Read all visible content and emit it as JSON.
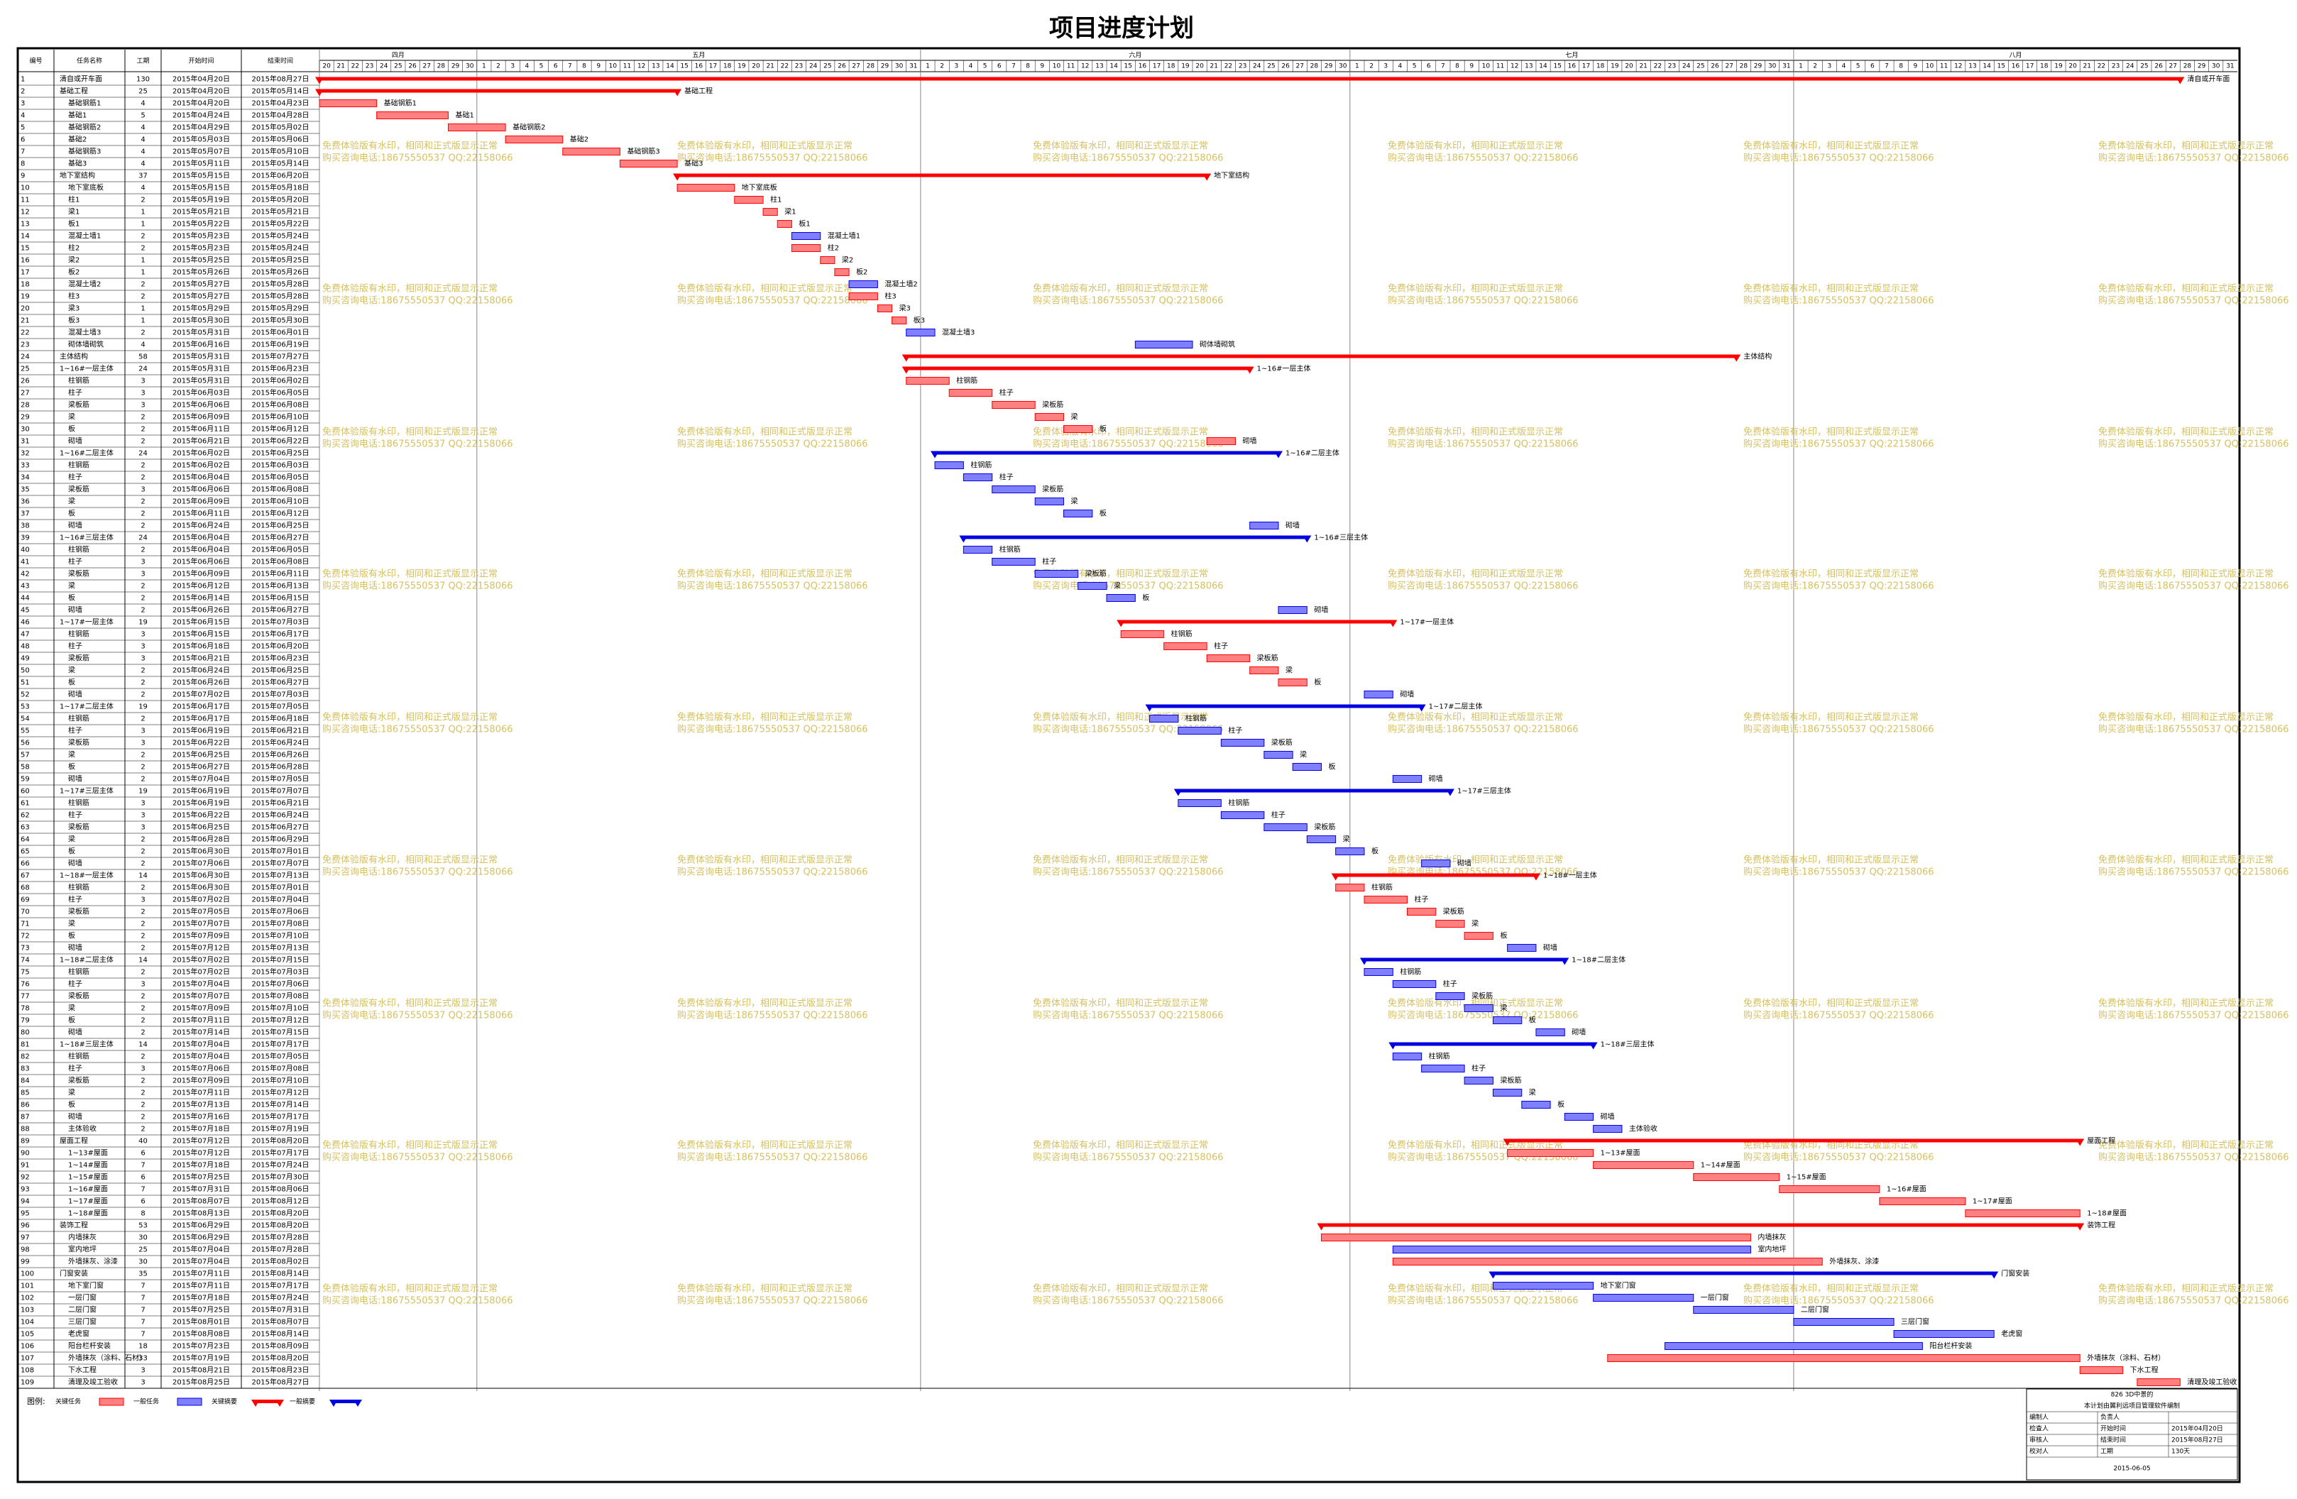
{
  "title": "项目进度计划",
  "columns": [
    "编号",
    "任务名称",
    "工期",
    "开始时间",
    "结束时间"
  ],
  "tasks": [
    [
      1,
      "清自或开车面",
      130,
      "2015年04月20日",
      "2015年08月27日",
      "cs"
    ],
    [
      2,
      "基础工程",
      25,
      "2015年04月20日",
      "2015年05月14日",
      "cs"
    ],
    [
      3,
      "基础钢筋1",
      4,
      "2015年04月20日",
      "2015年04月23日",
      "c"
    ],
    [
      4,
      "基础1",
      5,
      "2015年04月24日",
      "2015年04月28日",
      "c"
    ],
    [
      5,
      "基础钢筋2",
      4,
      "2015年04月29日",
      "2015年05月02日",
      "c"
    ],
    [
      6,
      "基础2",
      4,
      "2015年05月03日",
      "2015年05月06日",
      "c"
    ],
    [
      7,
      "基础钢筋3",
      4,
      "2015年05月07日",
      "2015年05月10日",
      "c"
    ],
    [
      8,
      "基础3",
      4,
      "2015年05月11日",
      "2015年05月14日",
      "c"
    ],
    [
      9,
      "地下室结构",
      37,
      "2015年05月15日",
      "2015年06月20日",
      "cs"
    ],
    [
      10,
      "地下室底板",
      4,
      "2015年05月15日",
      "2015年05月18日",
      "c"
    ],
    [
      11,
      "柱1",
      2,
      "2015年05月19日",
      "2015年05月20日",
      "c"
    ],
    [
      12,
      "梁1",
      1,
      "2015年05月21日",
      "2015年05月21日",
      "c"
    ],
    [
      13,
      "板1",
      1,
      "2015年05月22日",
      "2015年05月22日",
      "c"
    ],
    [
      14,
      "混凝土墙1",
      2,
      "2015年05月23日",
      "2015年05月24日",
      "n"
    ],
    [
      15,
      "柱2",
      2,
      "2015年05月23日",
      "2015年05月24日",
      "c"
    ],
    [
      16,
      "梁2",
      1,
      "2015年05月25日",
      "2015年05月25日",
      "c"
    ],
    [
      17,
      "板2",
      1,
      "2015年05月26日",
      "2015年05月26日",
      "c"
    ],
    [
      18,
      "混凝土墙2",
      2,
      "2015年05月27日",
      "2015年05月28日",
      "n"
    ],
    [
      19,
      "柱3",
      2,
      "2015年05月27日",
      "2015年05月28日",
      "c"
    ],
    [
      20,
      "梁3",
      1,
      "2015年05月29日",
      "2015年05月29日",
      "c"
    ],
    [
      21,
      "板3",
      1,
      "2015年05月30日",
      "2015年05月30日",
      "c"
    ],
    [
      22,
      "混凝土墙3",
      2,
      "2015年05月31日",
      "2015年06月01日",
      "n"
    ],
    [
      23,
      "砌体墙砌筑",
      4,
      "2015年06月16日",
      "2015年06月19日",
      "n"
    ],
    [
      24,
      "主体结构",
      58,
      "2015年05月31日",
      "2015年07月27日",
      "cs"
    ],
    [
      25,
      "1~16#一层主体",
      24,
      "2015年05月31日",
      "2015年06月23日",
      "cs"
    ],
    [
      26,
      "柱钢筋",
      3,
      "2015年05月31日",
      "2015年06月02日",
      "c"
    ],
    [
      27,
      "柱子",
      3,
      "2015年06月03日",
      "2015年06月05日",
      "c"
    ],
    [
      28,
      "梁板筋",
      3,
      "2015年06月06日",
      "2015年06月08日",
      "c"
    ],
    [
      29,
      "梁",
      2,
      "2015年06月09日",
      "2015年06月10日",
      "c"
    ],
    [
      30,
      "板",
      2,
      "2015年06月11日",
      "2015年06月12日",
      "c"
    ],
    [
      31,
      "砌墙",
      2,
      "2015年06月21日",
      "2015年06月22日",
      "c"
    ],
    [
      32,
      "1~16#二层主体",
      24,
      "2015年06月02日",
      "2015年06月25日",
      "ns"
    ],
    [
      33,
      "柱钢筋",
      2,
      "2015年06月02日",
      "2015年06月03日",
      "n"
    ],
    [
      34,
      "柱子",
      2,
      "2015年06月04日",
      "2015年06月05日",
      "n"
    ],
    [
      35,
      "梁板筋",
      3,
      "2015年06月06日",
      "2015年06月08日",
      "n"
    ],
    [
      36,
      "梁",
      2,
      "2015年06月09日",
      "2015年06月10日",
      "n"
    ],
    [
      37,
      "板",
      2,
      "2015年06月11日",
      "2015年06月12日",
      "n"
    ],
    [
      38,
      "砌墙",
      2,
      "2015年06月24日",
      "2015年06月25日",
      "n"
    ],
    [
      39,
      "1~16#三层主体",
      24,
      "2015年06月04日",
      "2015年06月27日",
      "ns"
    ],
    [
      40,
      "柱钢筋",
      2,
      "2015年06月04日",
      "2015年06月05日",
      "n"
    ],
    [
      41,
      "柱子",
      3,
      "2015年06月06日",
      "2015年06月08日",
      "n"
    ],
    [
      42,
      "梁板筋",
      3,
      "2015年06月09日",
      "2015年06月11日",
      "n"
    ],
    [
      43,
      "梁",
      2,
      "2015年06月12日",
      "2015年06月13日",
      "n"
    ],
    [
      44,
      "板",
      2,
      "2015年06月14日",
      "2015年06月15日",
      "n"
    ],
    [
      45,
      "砌墙",
      2,
      "2015年06月26日",
      "2015年06月27日",
      "n"
    ],
    [
      46,
      "1~17#一层主体",
      19,
      "2015年06月15日",
      "2015年07月03日",
      "cs"
    ],
    [
      47,
      "柱钢筋",
      3,
      "2015年06月15日",
      "2015年06月17日",
      "c"
    ],
    [
      48,
      "柱子",
      3,
      "2015年06月18日",
      "2015年06月20日",
      "c"
    ],
    [
      49,
      "梁板筋",
      3,
      "2015年06月21日",
      "2015年06月23日",
      "c"
    ],
    [
      50,
      "梁",
      2,
      "2015年06月24日",
      "2015年06月25日",
      "c"
    ],
    [
      51,
      "板",
      2,
      "2015年06月26日",
      "2015年06月27日",
      "c"
    ],
    [
      52,
      "砌墙",
      2,
      "2015年07月02日",
      "2015年07月03日",
      "n"
    ],
    [
      53,
      "1~17#二层主体",
      19,
      "2015年06月17日",
      "2015年07月05日",
      "ns"
    ],
    [
      54,
      "柱钢筋",
      2,
      "2015年06月17日",
      "2015年06月18日",
      "n"
    ],
    [
      55,
      "柱子",
      3,
      "2015年06月19日",
      "2015年06月21日",
      "n"
    ],
    [
      56,
      "梁板筋",
      3,
      "2015年06月22日",
      "2015年06月24日",
      "n"
    ],
    [
      57,
      "梁",
      2,
      "2015年06月25日",
      "2015年06月26日",
      "n"
    ],
    [
      58,
      "板",
      2,
      "2015年06月27日",
      "2015年06月28日",
      "n"
    ],
    [
      59,
      "砌墙",
      2,
      "2015年07月04日",
      "2015年07月05日",
      "n"
    ],
    [
      60,
      "1~17#三层主体",
      19,
      "2015年06月19日",
      "2015年07月07日",
      "ns"
    ],
    [
      61,
      "柱钢筋",
      3,
      "2015年06月19日",
      "2015年06月21日",
      "n"
    ],
    [
      62,
      "柱子",
      3,
      "2015年06月22日",
      "2015年06月24日",
      "n"
    ],
    [
      63,
      "梁板筋",
      3,
      "2015年06月25日",
      "2015年06月27日",
      "n"
    ],
    [
      64,
      "梁",
      2,
      "2015年06月28日",
      "2015年06月29日",
      "n"
    ],
    [
      65,
      "板",
      2,
      "2015年06月30日",
      "2015年07月01日",
      "n"
    ],
    [
      66,
      "砌墙",
      2,
      "2015年07月06日",
      "2015年07月07日",
      "n"
    ],
    [
      67,
      "1~18#一层主体",
      14,
      "2015年06月30日",
      "2015年07月13日",
      "cs"
    ],
    [
      68,
      "柱钢筋",
      2,
      "2015年06月30日",
      "2015年07月01日",
      "c"
    ],
    [
      69,
      "柱子",
      3,
      "2015年07月02日",
      "2015年07月04日",
      "c"
    ],
    [
      70,
      "梁板筋",
      2,
      "2015年07月05日",
      "2015年07月06日",
      "c"
    ],
    [
      71,
      "梁",
      2,
      "2015年07月07日",
      "2015年07月08日",
      "c"
    ],
    [
      72,
      "板",
      2,
      "2015年07月09日",
      "2015年07月10日",
      "c"
    ],
    [
      73,
      "砌墙",
      2,
      "2015年07月12日",
      "2015年07月13日",
      "n"
    ],
    [
      74,
      "1~18#二层主体",
      14,
      "2015年07月02日",
      "2015年07月15日",
      "ns"
    ],
    [
      75,
      "柱钢筋",
      2,
      "2015年07月02日",
      "2015年07月03日",
      "n"
    ],
    [
      76,
      "柱子",
      3,
      "2015年07月04日",
      "2015年07月06日",
      "n"
    ],
    [
      77,
      "梁板筋",
      2,
      "2015年07月07日",
      "2015年07月08日",
      "n"
    ],
    [
      78,
      "梁",
      2,
      "2015年07月09日",
      "2015年07月10日",
      "n"
    ],
    [
      79,
      "板",
      2,
      "2015年07月11日",
      "2015年07月12日",
      "n"
    ],
    [
      80,
      "砌墙",
      2,
      "2015年07月14日",
      "2015年07月15日",
      "n"
    ],
    [
      81,
      "1~18#三层主体",
      14,
      "2015年07月04日",
      "2015年07月17日",
      "ns"
    ],
    [
      82,
      "柱钢筋",
      2,
      "2015年07月04日",
      "2015年07月05日",
      "n"
    ],
    [
      83,
      "柱子",
      3,
      "2015年07月06日",
      "2015年07月08日",
      "n"
    ],
    [
      84,
      "梁板筋",
      2,
      "2015年07月09日",
      "2015年07月10日",
      "n"
    ],
    [
      85,
      "梁",
      2,
      "2015年07月11日",
      "2015年07月12日",
      "n"
    ],
    [
      86,
      "板",
      2,
      "2015年07月13日",
      "2015年07月14日",
      "n"
    ],
    [
      87,
      "砌墙",
      2,
      "2015年07月16日",
      "2015年07月17日",
      "n"
    ],
    [
      88,
      "主体验收",
      2,
      "2015年07月18日",
      "2015年07月19日",
      "n"
    ],
    [
      89,
      "屋面工程",
      40,
      "2015年07月12日",
      "2015年08月20日",
      "cs"
    ],
    [
      90,
      "1~13#屋面",
      6,
      "2015年07月12日",
      "2015年07月17日",
      "c"
    ],
    [
      91,
      "1~14#屋面",
      7,
      "2015年07月18日",
      "2015年07月24日",
      "c"
    ],
    [
      92,
      "1~15#屋面",
      6,
      "2015年07月25日",
      "2015年07月30日",
      "c"
    ],
    [
      93,
      "1~16#屋面",
      7,
      "2015年07月31日",
      "2015年08月06日",
      "c"
    ],
    [
      94,
      "1~17#屋面",
      6,
      "2015年08月07日",
      "2015年08月12日",
      "c"
    ],
    [
      95,
      "1~18#屋面",
      8,
      "2015年08月13日",
      "2015年08月20日",
      "c"
    ],
    [
      96,
      "装饰工程",
      53,
      "2015年06月29日",
      "2015年08月20日",
      "cs"
    ],
    [
      97,
      "内墙抹灰",
      30,
      "2015年06月29日",
      "2015年07月28日",
      "c"
    ],
    [
      98,
      "室内地坪",
      25,
      "2015年07月04日",
      "2015年07月28日",
      "n"
    ],
    [
      99,
      "外墙抹灰、涂漆",
      30,
      "2015年07月04日",
      "2015年08月02日",
      "c"
    ],
    [
      100,
      "门窗安装",
      35,
      "2015年07月11日",
      "2015年08月14日",
      "ns"
    ],
    [
      101,
      "地下室门窗",
      7,
      "2015年07月11日",
      "2015年07月17日",
      "n"
    ],
    [
      102,
      "一层门窗",
      7,
      "2015年07月18日",
      "2015年07月24日",
      "n"
    ],
    [
      103,
      "二层门窗",
      7,
      "2015年07月25日",
      "2015年07月31日",
      "n"
    ],
    [
      104,
      "三层门窗",
      7,
      "2015年08月01日",
      "2015年08月07日",
      "n"
    ],
    [
      105,
      "老虎窗",
      7,
      "2015年08月08日",
      "2015年08月14日",
      "n"
    ],
    [
      106,
      "阳台栏杆安装",
      18,
      "2015年07月23日",
      "2015年08月09日",
      "n"
    ],
    [
      107,
      "外墙抹灰（涂料、石材）",
      33,
      "2015年07月19日",
      "2015年08月20日",
      "c"
    ],
    [
      108,
      "下水工程",
      3,
      "2015年08月21日",
      "2015年08月23日",
      "c"
    ],
    [
      109,
      "清理及竣工验收",
      3,
      "2015年08月25日",
      "2015年08月27日",
      "c"
    ]
  ],
  "timeline": {
    "months": [
      {
        "name": "四月",
        "days": [
          20,
          21,
          22,
          23,
          24,
          25,
          26,
          27,
          28,
          29,
          30
        ]
      },
      {
        "name": "五月",
        "days": [
          1,
          2,
          3,
          4,
          5,
          6,
          7,
          8,
          9,
          10,
          11,
          12,
          13,
          14,
          15,
          16,
          17,
          18,
          19,
          20,
          21,
          22,
          23,
          24,
          25,
          26,
          27,
          28,
          29,
          30,
          31
        ]
      },
      {
        "name": "六月",
        "days": [
          1,
          2,
          3,
          4,
          5,
          6,
          7,
          8,
          9,
          10,
          11,
          12,
          13,
          14,
          15,
          16,
          17,
          18,
          19,
          20,
          21,
          22,
          23,
          24,
          25,
          26,
          27,
          28,
          29,
          30
        ]
      },
      {
        "name": "七月",
        "days": [
          1,
          2,
          3,
          4,
          5,
          6,
          7,
          8,
          9,
          10,
          11,
          12,
          13,
          14,
          15,
          16,
          17,
          18,
          19,
          20,
          21,
          22,
          23,
          24,
          25,
          26,
          27,
          28,
          29,
          30,
          31
        ]
      },
      {
        "name": "八月",
        "days": [
          1,
          2,
          3,
          4,
          5,
          6,
          7,
          8,
          9,
          10,
          11,
          12,
          13,
          14,
          15,
          16,
          17,
          18,
          19,
          20,
          21,
          22,
          23,
          24,
          25,
          26,
          27,
          28,
          29,
          30,
          31
        ]
      }
    ]
  },
  "legend": {
    "label": "图例:",
    "items": [
      "关键任务",
      "一般任务",
      "关键摘要",
      "一般摘要"
    ]
  },
  "watermark": [
    "免费体验版有水印，相同和正式版显示正常",
    "购买咨询电话:18675550537 QQ:22158066"
  ],
  "info": {
    "title": "826 3D中景的",
    "note": "本计划由翼利远项目管理软件编制",
    "rows": [
      [
        "编制人",
        "负责人"
      ],
      [
        "检查人",
        "开始时间",
        "2015年04月20日"
      ],
      [
        "审核人",
        "结束时间",
        "2015年08月27日"
      ],
      [
        "校对人",
        "工期",
        "130天"
      ]
    ],
    "date": "2015-06-05"
  }
}
